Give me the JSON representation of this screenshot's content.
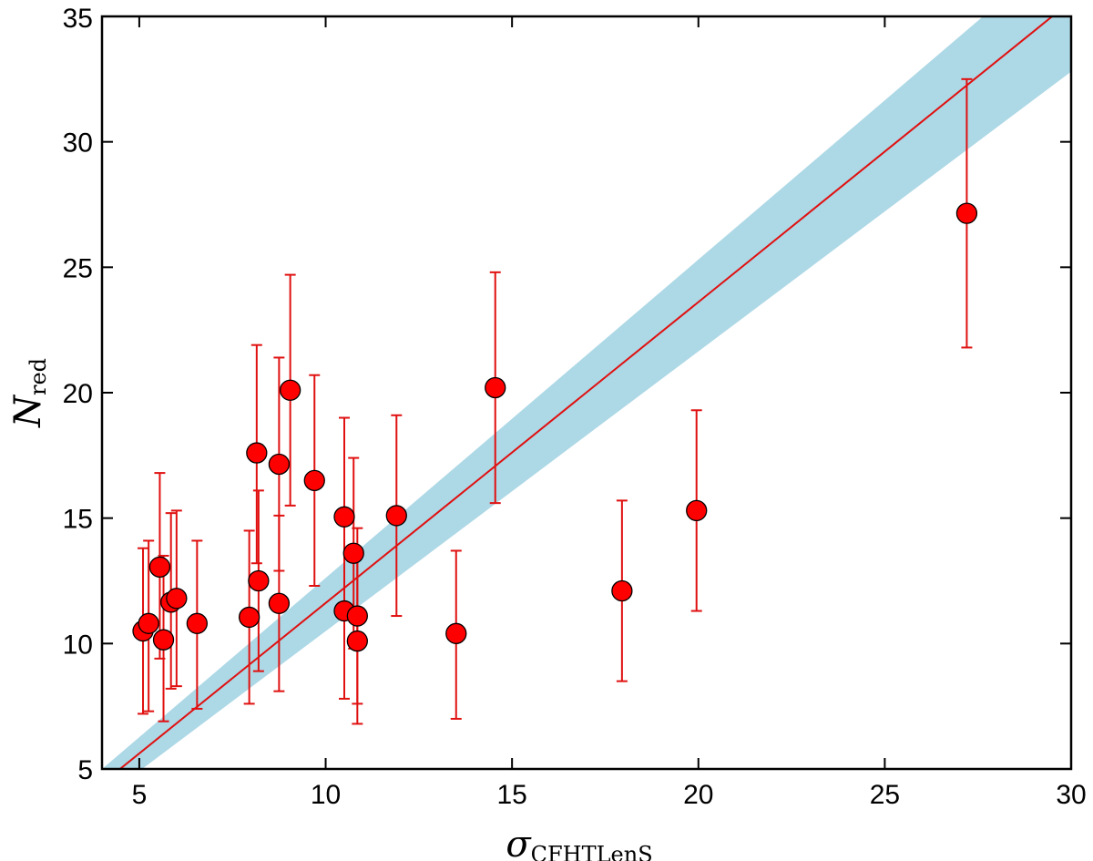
{
  "chart_data": {
    "type": "scatter",
    "title": "",
    "xlabel": {
      "symbol": "σ",
      "subscript": "CFHTLenS"
    },
    "ylabel": {
      "symbol": "N",
      "subscript": "red"
    },
    "xlim": [
      4,
      30
    ],
    "ylim": [
      5,
      35
    ],
    "xticks": [
      5,
      10,
      15,
      20,
      25,
      30
    ],
    "yticks": [
      5,
      10,
      15,
      20,
      25,
      30,
      35
    ],
    "grid": false,
    "colors": {
      "points": "#ff0000",
      "errorbars": "#e01010",
      "fit_line": "#e01010",
      "band": "#add8e6",
      "frame": "#000000"
    },
    "fit_line": {
      "x": [
        4,
        30
      ],
      "y": [
        4.42,
        35.61
      ]
    },
    "band": {
      "x": [
        4,
        30
      ],
      "upper": [
        5.0,
        38.0
      ],
      "lower": [
        3.8,
        32.8
      ]
    },
    "series": [
      {
        "name": "clusters",
        "points": [
          {
            "x": 5.1,
            "y": 10.5,
            "yerr_low": 7.2,
            "yerr_high": 13.8
          },
          {
            "x": 5.25,
            "y": 10.8,
            "yerr_low": 7.3,
            "yerr_high": 14.1
          },
          {
            "x": 5.55,
            "y": 13.05,
            "yerr_low": 9.4,
            "yerr_high": 16.8
          },
          {
            "x": 5.65,
            "y": 10.15,
            "yerr_low": 6.9,
            "yerr_high": 13.5
          },
          {
            "x": 5.85,
            "y": 11.65,
            "yerr_low": 8.2,
            "yerr_high": 15.2
          },
          {
            "x": 6.0,
            "y": 11.8,
            "yerr_low": 8.3,
            "yerr_high": 15.3
          },
          {
            "x": 6.55,
            "y": 10.8,
            "yerr_low": 7.4,
            "yerr_high": 14.1
          },
          {
            "x": 7.95,
            "y": 11.05,
            "yerr_low": 7.6,
            "yerr_high": 14.5
          },
          {
            "x": 8.15,
            "y": 17.6,
            "yerr_low": 13.2,
            "yerr_high": 21.9
          },
          {
            "x": 8.2,
            "y": 12.5,
            "yerr_low": 8.9,
            "yerr_high": 16.1
          },
          {
            "x": 8.75,
            "y": 17.15,
            "yerr_low": 12.9,
            "yerr_high": 21.4
          },
          {
            "x": 8.75,
            "y": 11.6,
            "yerr_low": 8.1,
            "yerr_high": 15.1
          },
          {
            "x": 9.05,
            "y": 20.1,
            "yerr_low": 15.5,
            "yerr_high": 24.7
          },
          {
            "x": 9.7,
            "y": 16.5,
            "yerr_low": 12.3,
            "yerr_high": 20.7
          },
          {
            "x": 10.5,
            "y": 15.05,
            "yerr_low": 11.0,
            "yerr_high": 19.0
          },
          {
            "x": 10.5,
            "y": 11.3,
            "yerr_low": 7.8,
            "yerr_high": 14.9
          },
          {
            "x": 10.75,
            "y": 13.6,
            "yerr_low": 9.8,
            "yerr_high": 17.4
          },
          {
            "x": 10.85,
            "y": 11.1,
            "yerr_low": 7.6,
            "yerr_high": 14.6
          },
          {
            "x": 10.85,
            "y": 10.1,
            "yerr_low": 6.8,
            "yerr_high": 13.5
          },
          {
            "x": 11.9,
            "y": 15.1,
            "yerr_low": 11.1,
            "yerr_high": 19.1
          },
          {
            "x": 13.5,
            "y": 10.4,
            "yerr_low": 7.0,
            "yerr_high": 13.7
          },
          {
            "x": 14.55,
            "y": 20.2,
            "yerr_low": 15.6,
            "yerr_high": 24.8
          },
          {
            "x": 17.95,
            "y": 12.1,
            "yerr_low": 8.5,
            "yerr_high": 15.7
          },
          {
            "x": 19.95,
            "y": 15.3,
            "yerr_low": 11.3,
            "yerr_high": 19.3
          },
          {
            "x": 27.2,
            "y": 27.15,
            "yerr_low": 21.8,
            "yerr_high": 32.5
          }
        ]
      }
    ]
  }
}
